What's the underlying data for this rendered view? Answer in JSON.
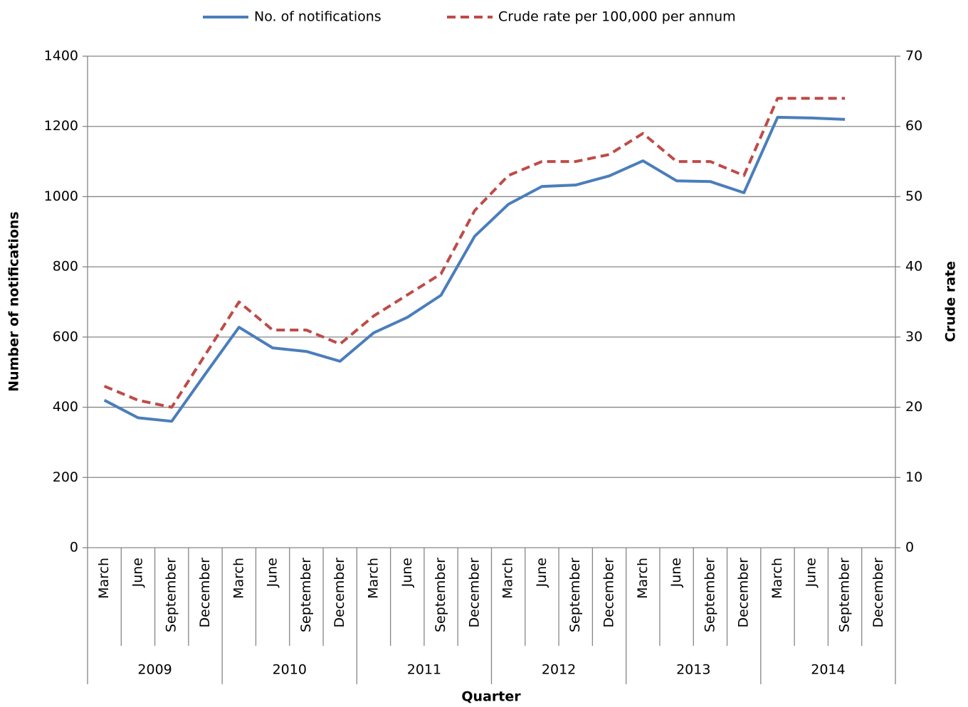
{
  "chart_data": {
    "type": "line",
    "x_title": "Quarter",
    "y_title": "Number of notifications",
    "y2_title": "Crude rate",
    "categories": [
      "March",
      "June",
      "September",
      "December",
      "March",
      "June",
      "September",
      "December",
      "March",
      "June",
      "September",
      "December",
      "March",
      "June",
      "September",
      "December",
      "March",
      "June",
      "September",
      "December",
      "March",
      "June",
      "September",
      "December"
    ],
    "years": [
      "2009",
      "2010",
      "2011",
      "2012",
      "2013",
      "2014"
    ],
    "series": [
      {
        "name": "No. of notifications",
        "color": "#4a7ebb",
        "values": [
          420,
          370,
          360,
          495,
          628,
          569,
          559,
          531,
          612,
          656,
          719,
          887,
          978,
          1029,
          1033,
          1059,
          1102,
          1045,
          1043,
          1011,
          1226,
          1224,
          1220,
          null
        ]
      },
      {
        "name": "Crude rate per 100,000 per annum",
        "color": "#be4b48",
        "dashed": true,
        "axis": "y2",
        "values": [
          23,
          21,
          20,
          27.5,
          35,
          31,
          31,
          29,
          33,
          36,
          39,
          48,
          53,
          55,
          55,
          56,
          59,
          55,
          55,
          53,
          64,
          64,
          64,
          null
        ]
      }
    ],
    "ylim": [
      0,
      1400
    ],
    "yticks": [
      0,
      200,
      400,
      600,
      800,
      1000,
      1200,
      1400
    ],
    "y2lim": [
      0,
      70
    ],
    "y2ticks": [
      0,
      10,
      20,
      30,
      40,
      50,
      60,
      70
    ],
    "grid": true,
    "legend": "top"
  }
}
